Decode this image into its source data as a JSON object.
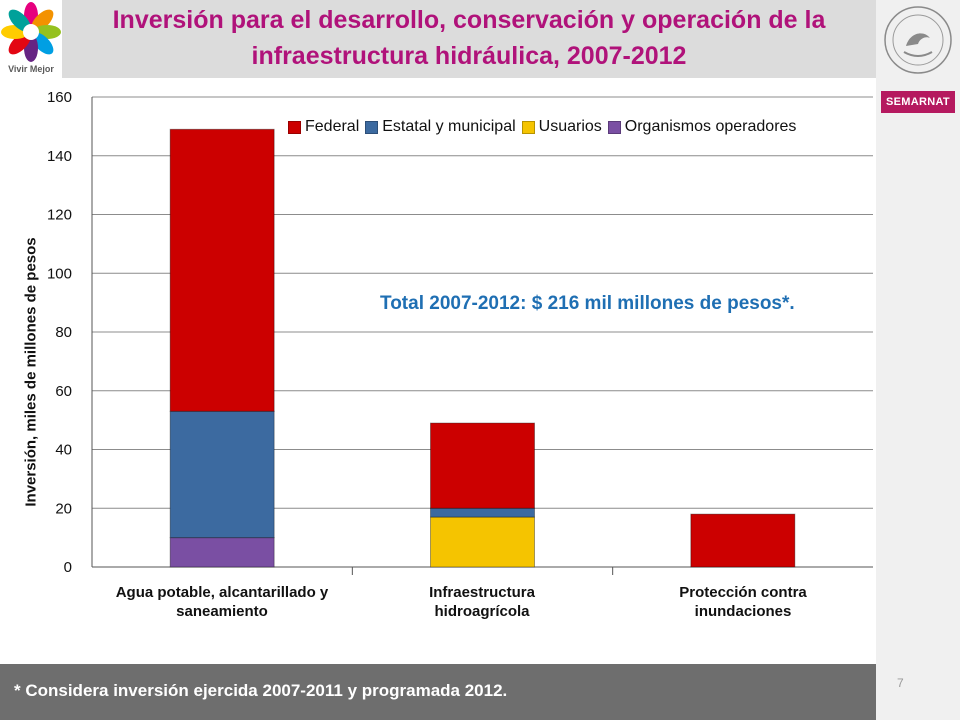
{
  "header": {
    "title": "Inversión para el desarrollo, conservación y operación de la infraestructura hidráulica, 2007-2012",
    "logo_left_text": "Vivir Mejor",
    "logo_right_text": "SEMARNAT"
  },
  "footer": {
    "note": "* Considera inversión ejercida 2007-2011 y programada 2012.",
    "page_number": "7"
  },
  "annotation": "Total 2007-2012: $ 216 mil millones de pesos*.",
  "chart_data": {
    "type": "bar",
    "stacked": true,
    "categories": [
      "Agua potable, alcantarillado y saneamiento",
      "Infraestructura hidroagrícola",
      "Protección contra inundaciones"
    ],
    "category_lines": [
      [
        "Agua potable, alcantarillado y",
        "saneamiento"
      ],
      [
        "Infraestructura",
        "hidroagrícola"
      ],
      [
        "Protección contra",
        "inundaciones"
      ]
    ],
    "series": [
      {
        "name": "Organismos operadores",
        "color": "#7a4fa3",
        "values": [
          10,
          0,
          0
        ]
      },
      {
        "name": "Usuarios",
        "color": "#f5c400",
        "values": [
          0,
          17,
          0
        ]
      },
      {
        "name": "Estatal y municipal",
        "color": "#3c6aa0",
        "values": [
          43,
          3,
          0
        ]
      },
      {
        "name": "Federal",
        "color": "#cc0000",
        "values": [
          96,
          29,
          18
        ]
      }
    ],
    "legend_order": [
      "Federal",
      "Estatal y municipal",
      "Usuarios",
      "Organismos operadores"
    ],
    "ylabel": "Inversión, miles de millones de pesos",
    "xlabel": "",
    "ylim": [
      0,
      160
    ],
    "yticks": [
      "0",
      "20",
      "40",
      "60",
      "80",
      "100",
      "120",
      "140",
      "160"
    ],
    "grid": true,
    "legend_position": "top-right"
  }
}
